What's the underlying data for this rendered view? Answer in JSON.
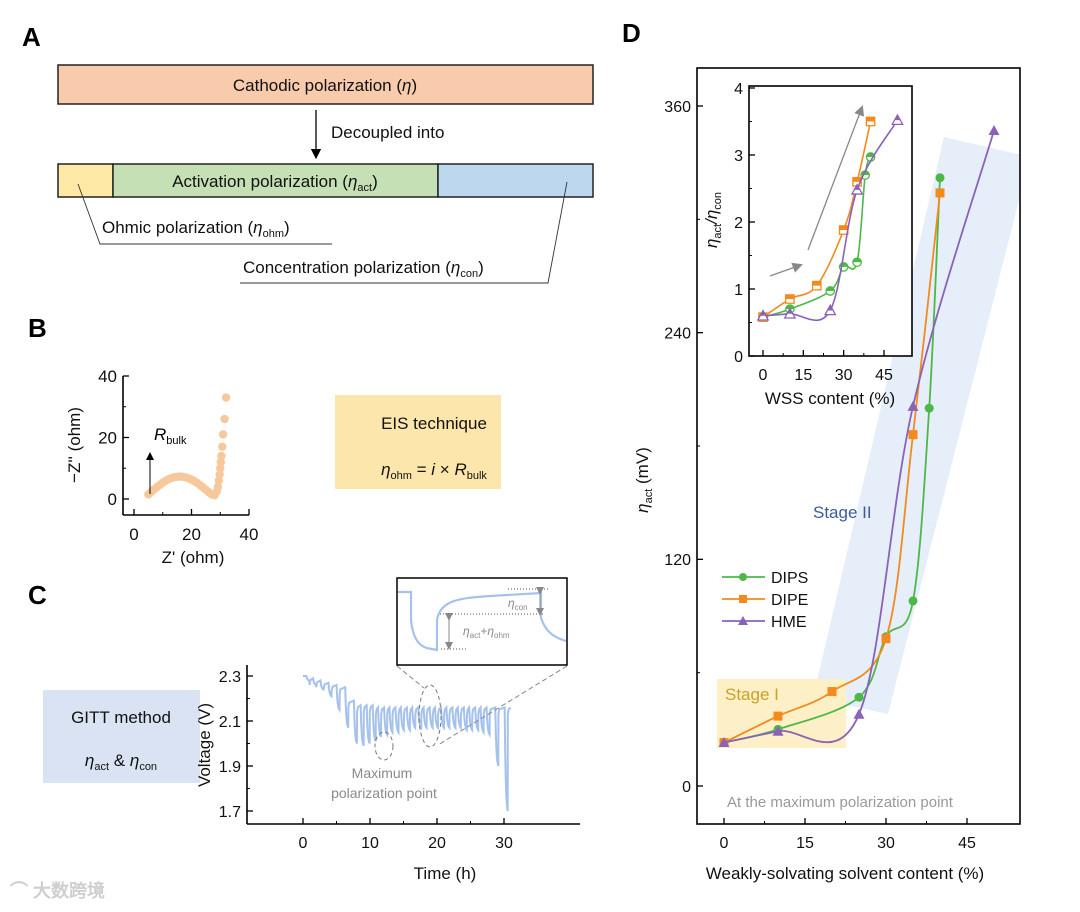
{
  "panels": {
    "a": "A",
    "b": "B",
    "c": "C",
    "d": "D"
  },
  "panel_a": {
    "cathodic": "Cathodic polarization (",
    "eta": "η",
    "close": ")",
    "decoupled": "Decoupled into",
    "activation": "Activation polarization (",
    "act_sub": "act",
    "ohmic": "Ohmic polarization (",
    "ohm_sub": "ohm",
    "concentration": "Concentration polarization (",
    "con_sub": "con",
    "colors": {
      "cathodic": "#f8cbad",
      "ohmic": "#ffe699",
      "activation": "#c5e0b4",
      "concentration": "#bdd7ee"
    }
  },
  "panel_b": {
    "box_title": "EIS technique",
    "eq_eta": "η",
    "eq_sub": "ohm",
    "eq_mid": " = ",
    "eq_i": "i",
    "eq_times": " × ",
    "eq_R": "R",
    "eq_R_sub": "bulk",
    "rbulk_label": "R",
    "rbulk_sub": "bulk"
  },
  "panel_c": {
    "box_title": "GITT method",
    "box_eta1": "η",
    "box_sub1": "act",
    "box_amp": " & ",
    "box_eta2": "η",
    "box_sub2": "con",
    "annot_line1": "Maximum",
    "annot_line2": "polarization point",
    "inset_con": "η",
    "inset_con_sub": "con",
    "inset_act": "η",
    "inset_act_sub": "act",
    "inset_plus": "+",
    "inset_ohm": "η",
    "inset_ohm_sub": "ohm"
  },
  "panel_d": {
    "stage1": "Stage I",
    "stage2": "Stage II",
    "note": "At the maximum  polarization point",
    "colors": {
      "DIPS": "#4db848",
      "DIPE": "#f28a1e",
      "HME": "#8a63b8",
      "stage1": "#fdefc6",
      "stage2": "#e6eef9"
    }
  },
  "watermark": "大数跨境",
  "chart_data": [
    {
      "id": "eis",
      "type": "scatter",
      "title": "",
      "xlabel": "Z' (ohm)",
      "ylabel": "−Z'' (ohm)",
      "xlim": [
        0,
        40
      ],
      "ylim": [
        0,
        40
      ],
      "xticks": [
        0,
        20,
        40
      ],
      "yticks": [
        0,
        20,
        40
      ],
      "color": "#f7c89c",
      "x": [
        5,
        6,
        7,
        8,
        9,
        10,
        11,
        12,
        13,
        14,
        15,
        16,
        17,
        18,
        19,
        20,
        21,
        22,
        23,
        24,
        25,
        26,
        27,
        28,
        28.8,
        29.2,
        29.5,
        29.8,
        30,
        30.2,
        30.4,
        30.7,
        31,
        31.5,
        32
      ],
      "y": [
        1.5,
        2.3,
        3.1,
        3.9,
        4.6,
        5.3,
        5.9,
        6.4,
        6.8,
        7.1,
        7.2,
        7.3,
        7.2,
        7.0,
        6.7,
        6.3,
        5.8,
        5.2,
        4.5,
        3.8,
        3.0,
        2.2,
        1.5,
        1.2,
        2.5,
        4,
        6,
        8,
        10,
        12,
        14,
        17,
        21,
        26,
        33
      ]
    },
    {
      "id": "gitt",
      "type": "line",
      "xlabel": "Time (h)",
      "ylabel": "Voltage (V)",
      "xlim": [
        0,
        31
      ],
      "ylim": [
        1.65,
        2.35
      ],
      "xticks": [
        0,
        10,
        20,
        30
      ],
      "yticks": [
        1.7,
        1.9,
        2.1,
        2.3
      ],
      "color": "#a4c2eb",
      "pulses": [
        [
          0.5,
          2.3,
          2.28
        ],
        [
          1.5,
          2.29,
          2.26
        ],
        [
          2.6,
          2.28,
          2.24
        ],
        [
          3.8,
          2.27,
          2.21
        ],
        [
          5.0,
          2.26,
          2.15
        ],
        [
          6.3,
          2.25,
          2.07
        ],
        [
          7.6,
          2.19,
          2.0
        ],
        [
          8.6,
          2.17,
          1.99
        ],
        [
          9.5,
          2.17,
          2.0
        ],
        [
          10.4,
          2.17,
          2.01
        ],
        [
          11.2,
          2.16,
          2.03
        ],
        [
          12.1,
          2.16,
          2.04
        ],
        [
          12.9,
          2.16,
          2.05
        ],
        [
          13.8,
          2.16,
          2.05
        ],
        [
          14.6,
          2.16,
          2.06
        ],
        [
          15.5,
          2.16,
          2.06
        ],
        [
          16.3,
          2.16,
          2.07
        ],
        [
          17.2,
          2.16,
          2.07
        ],
        [
          18.0,
          2.16,
          2.07
        ],
        [
          18.9,
          2.16,
          2.07
        ],
        [
          19.7,
          2.16,
          2.07
        ],
        [
          20.6,
          2.16,
          2.07
        ],
        [
          21.4,
          2.16,
          2.07
        ],
        [
          22.3,
          2.16,
          2.07
        ],
        [
          23.1,
          2.16,
          2.07
        ],
        [
          24.0,
          2.16,
          2.06
        ],
        [
          24.8,
          2.16,
          2.06
        ],
        [
          25.7,
          2.16,
          2.06
        ],
        [
          26.5,
          2.16,
          2.05
        ],
        [
          27.4,
          2.16,
          2.04
        ],
        [
          28.7,
          2.16,
          1.9
        ],
        [
          30.1,
          2.16,
          1.7
        ]
      ]
    },
    {
      "id": "eta_act",
      "type": "line",
      "xlabel": "Weakly-solvating solvent content (%)",
      "ylabel": "η",
      "ylabel_sub": "act",
      "ylabel_unit": " (mV)",
      "xlim": [
        -10,
        55
      ],
      "ylim": [
        -20,
        380
      ],
      "xticks": [
        0,
        15,
        30,
        45
      ],
      "yticks": [
        0,
        120,
        240,
        360
      ],
      "legend": "left-middle",
      "series": [
        {
          "name": "DIPS",
          "marker": "circle",
          "x": [
            0,
            10,
            25,
            30,
            35,
            38,
            40
          ],
          "y": [
            23,
            30,
            47,
            79,
            98,
            200,
            322
          ]
        },
        {
          "name": "DIPE",
          "marker": "square",
          "x": [
            0,
            10,
            20,
            30,
            35,
            40
          ],
          "y": [
            23,
            37,
            50,
            78,
            186,
            314
          ]
        },
        {
          "name": "HME",
          "marker": "triangle",
          "x": [
            0,
            10,
            25,
            35,
            50
          ],
          "y": [
            23,
            29,
            38,
            201,
            347
          ]
        }
      ]
    },
    {
      "id": "ratio_inset",
      "type": "line",
      "xlabel": "WSS content (%)",
      "ylabel": "η",
      "ylabel_sub1": "act",
      "ylabel_slash": "/η",
      "ylabel_sub2": "con",
      "xlim": [
        -4,
        55
      ],
      "ylim": [
        0,
        4
      ],
      "xticks": [
        0,
        15,
        30,
        45
      ],
      "yticks": [
        0,
        1,
        2,
        3,
        4
      ],
      "series": [
        {
          "name": "DIPS",
          "marker": "circle",
          "x": [
            0,
            10,
            25,
            30,
            35,
            38,
            40
          ],
          "y": [
            0.58,
            0.7,
            0.97,
            1.33,
            1.4,
            2.7,
            2.97
          ]
        },
        {
          "name": "DIPE",
          "marker": "square",
          "x": [
            0,
            10,
            20,
            30,
            35,
            40
          ],
          "y": [
            0.58,
            0.85,
            1.05,
            1.88,
            2.6,
            3.5
          ]
        },
        {
          "name": "HME",
          "marker": "triangle",
          "x": [
            0,
            10,
            25,
            35,
            50
          ],
          "y": [
            0.6,
            0.63,
            0.68,
            2.48,
            3.52
          ]
        }
      ]
    }
  ]
}
